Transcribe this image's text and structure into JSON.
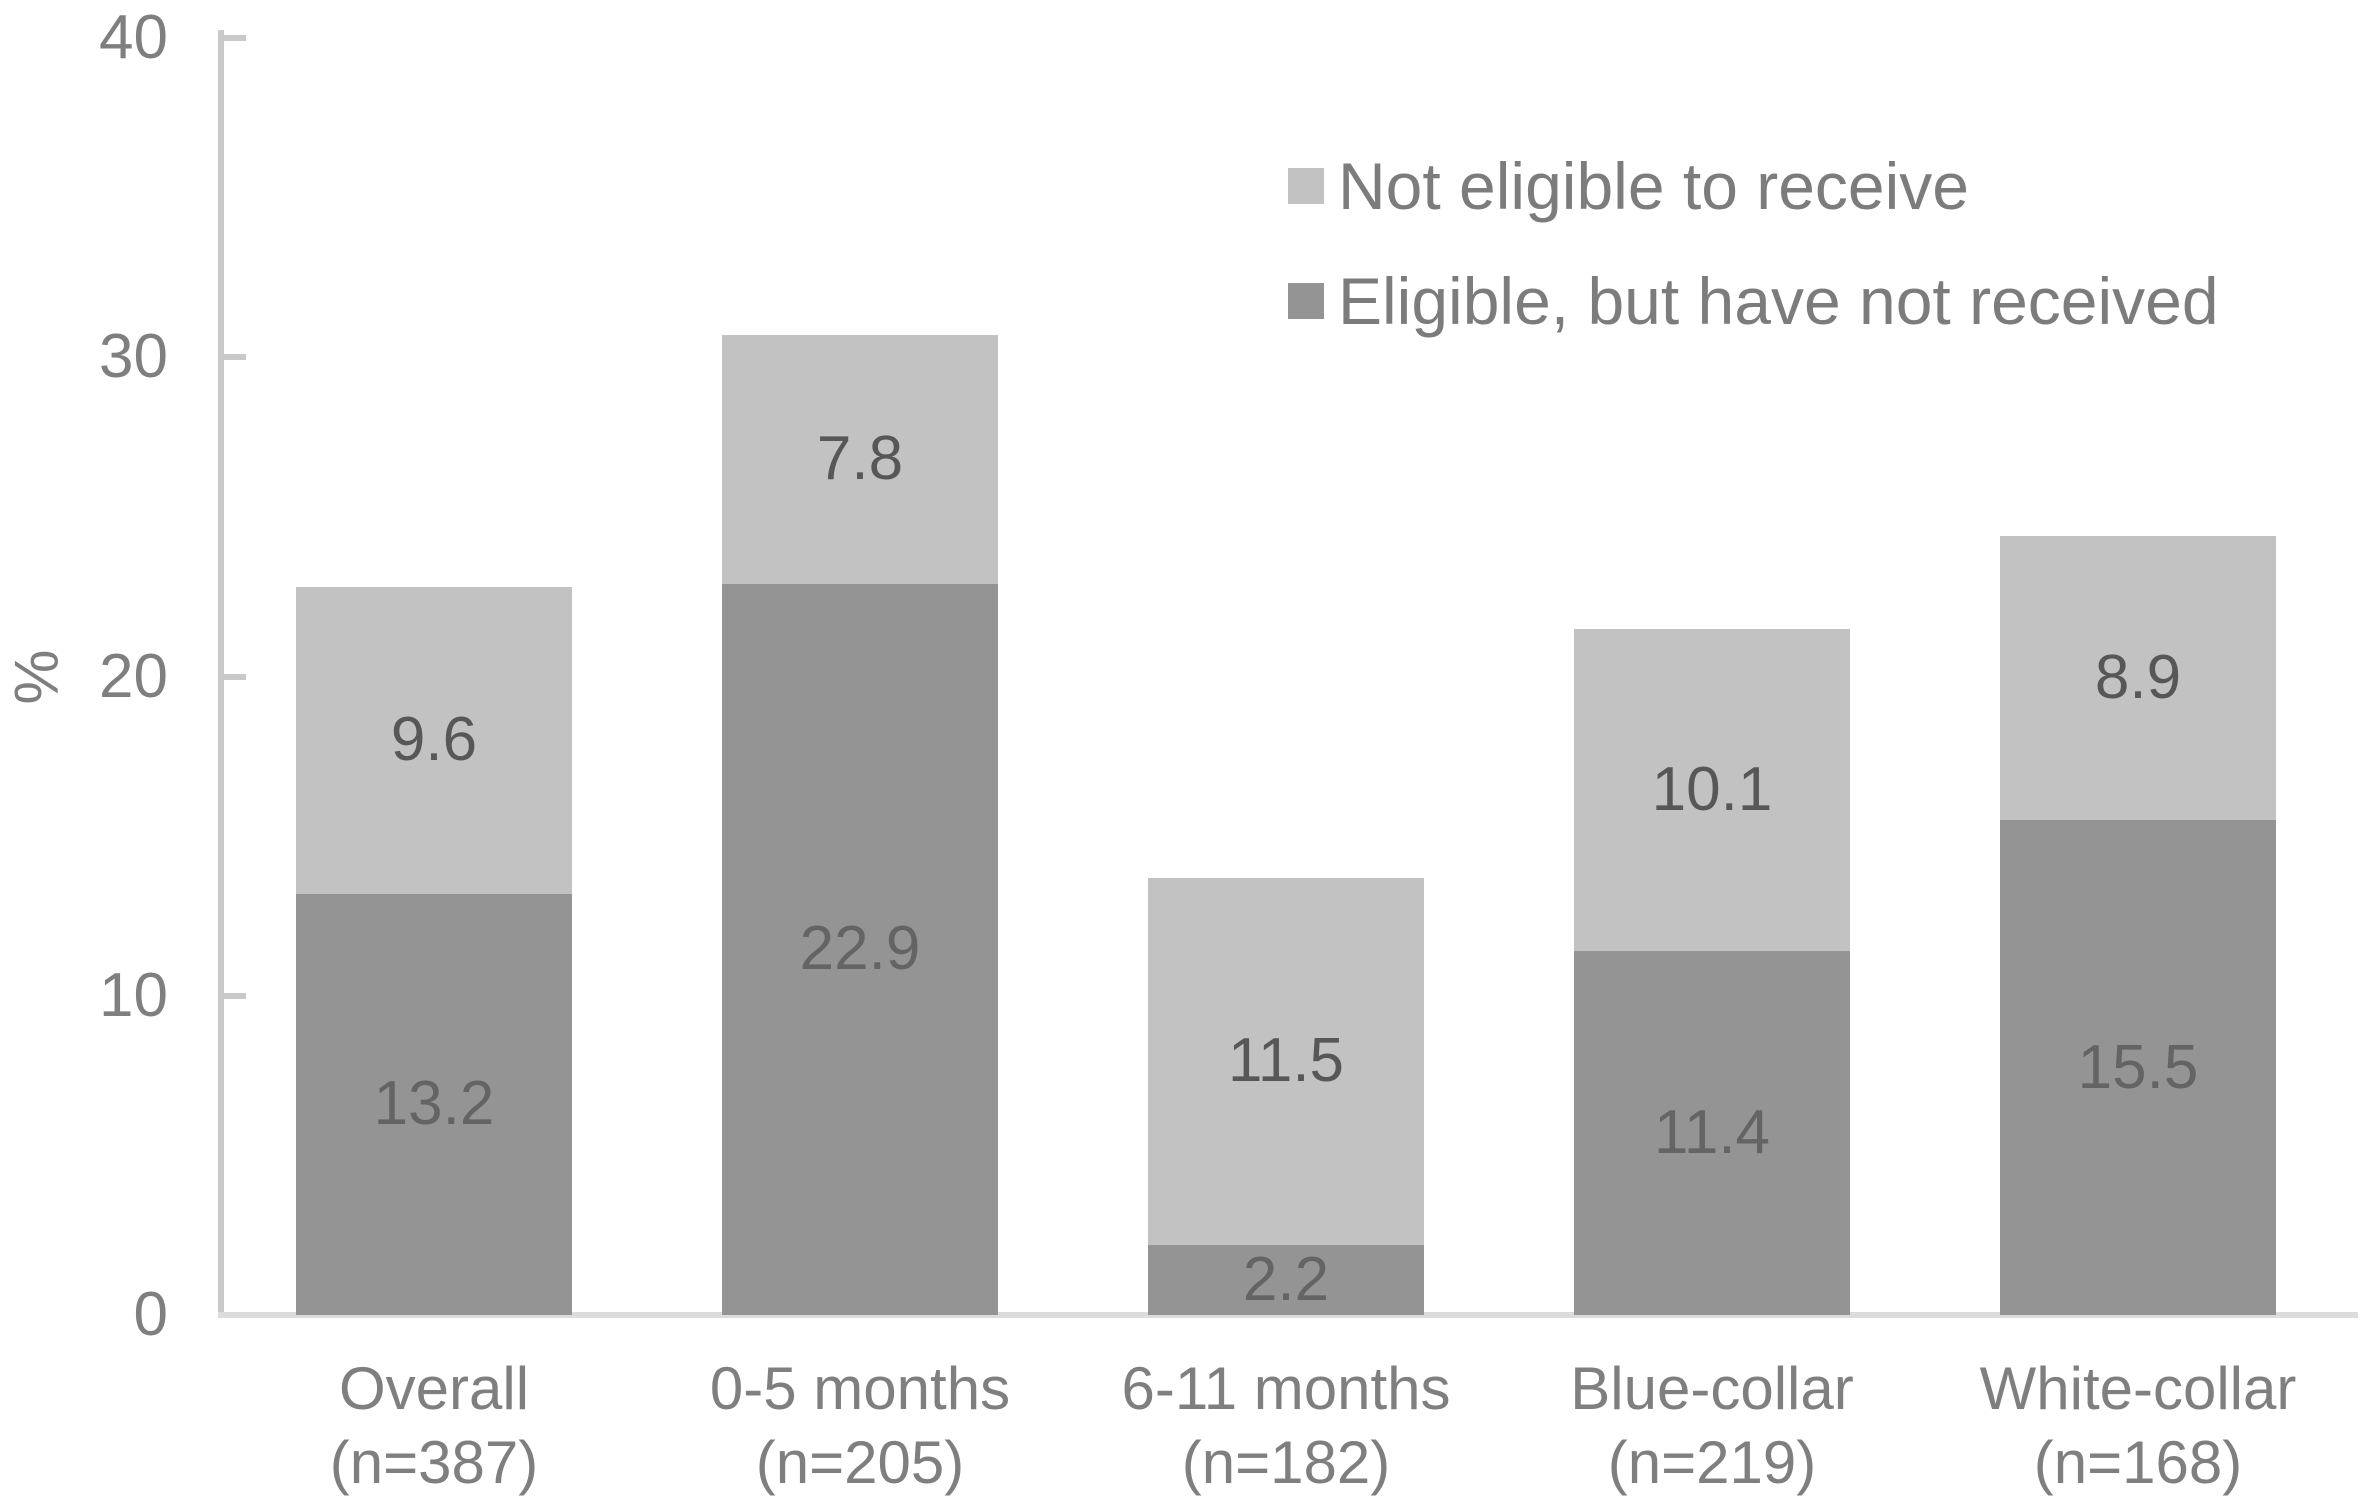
{
  "chart_data": {
    "type": "bar",
    "subtype": "stacked",
    "title": "",
    "xlabel": "",
    "ylabel": "%",
    "ylim": [
      0,
      40
    ],
    "yticks": [
      0,
      10,
      20,
      30,
      40
    ],
    "grid": false,
    "legend_position": "top-right",
    "categories": [
      {
        "label": "Overall",
        "n_label": "(n=387)"
      },
      {
        "label": "0-5 months",
        "n_label": "(n=205)"
      },
      {
        "label": "6-11 months",
        "n_label": "(n=182)"
      },
      {
        "label": "Blue-collar",
        "n_label": "(n=219)"
      },
      {
        "label": "White-collar",
        "n_label": "(n=168)"
      }
    ],
    "series": [
      {
        "name": "Eligible, but have not received",
        "color": "#949494",
        "label_color": "#646464",
        "values": [
          13.2,
          22.9,
          2.2,
          11.4,
          15.5
        ]
      },
      {
        "name": "Not eligible to receive",
        "color": "#c2c2c2",
        "label_color": "#575757",
        "values": [
          9.6,
          7.8,
          11.5,
          10.1,
          8.9
        ]
      }
    ],
    "totals": [
      22.8,
      30.7,
      13.7,
      21.5,
      24.4
    ]
  },
  "colors": {
    "axis_line": "#c9c9c9",
    "baseline": "#dcdcdc",
    "tick_text": "#7f7f7f",
    "category_text": "#7f7f7f",
    "legend_text": "#7c7c7c",
    "background": "#ffffff"
  }
}
